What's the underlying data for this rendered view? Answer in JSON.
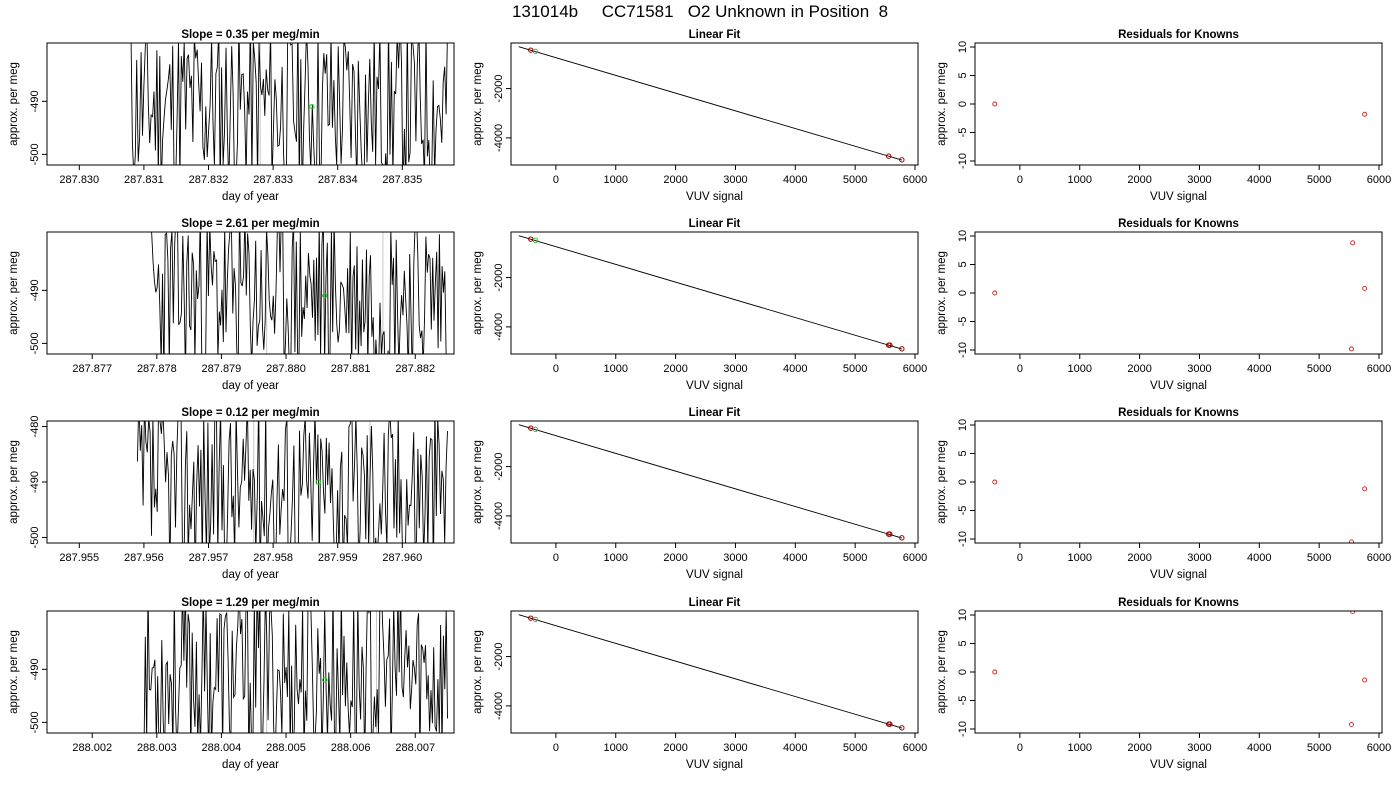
{
  "figure_title": "131014b     CC71581   O2 Unknown in Position  8",
  "chart_data": [
    {
      "type": "line",
      "title": "Slope =  0.35  per meg/min",
      "xlabel": "day of year",
      "ylabel": "approx. per meg",
      "xlim": [
        287.8295,
        287.8358
      ],
      "ylim": [
        -502,
        -479
      ],
      "xticks": [
        287.83,
        287.831,
        287.832,
        287.833,
        287.834,
        287.835
      ],
      "xtick_labels": [
        "287.830",
        "287.831",
        "287.832",
        "287.833",
        "287.834",
        "287.835"
      ],
      "yticks": [
        -490,
        -500
      ],
      "ytick_labels": [
        "-490",
        "-500"
      ],
      "x_start": 287.8308,
      "x_end": 287.8357,
      "seed": 11,
      "vlines": [
        287.8328
      ],
      "point": {
        "x": 287.8336,
        "y": -491
      }
    },
    {
      "type": "line",
      "title": "Linear Fit",
      "xlabel": "VUV signal",
      "ylabel": "approx. per meg",
      "xlim": [
        -750,
        6050
      ],
      "ylim": [
        -5100,
        -150
      ],
      "xticks": [
        0,
        1000,
        2000,
        3000,
        4000,
        5000,
        6000
      ],
      "xtick_labels": [
        "0",
        "1000",
        "2000",
        "3000",
        "4000",
        "5000",
        "6000"
      ],
      "yticks": [
        -2000,
        -4000
      ],
      "ytick_labels": [
        "-2000",
        "-4000"
      ],
      "line": [
        [
          -620,
          -300
        ],
        [
          5780,
          -4900
        ]
      ],
      "knowns": [
        [
          -420,
          -440
        ],
        [
          5560,
          -4740
        ],
        [
          5780,
          -4890
        ]
      ],
      "unknown": [
        -340,
        -490
      ]
    },
    {
      "type": "scatter",
      "title": "Residuals for Knowns",
      "xlabel": "VUV signal",
      "ylabel": "approx. per meg",
      "xlim": [
        -750,
        6050
      ],
      "ylim": [
        -10.7,
        10.7
      ],
      "xticks": [
        0,
        1000,
        2000,
        3000,
        4000,
        5000,
        6000
      ],
      "xtick_labels": [
        "0",
        "1000",
        "2000",
        "3000",
        "4000",
        "5000",
        "6000"
      ],
      "yticks": [
        10,
        5,
        0,
        -5,
        -10
      ],
      "ytick_labels": [
        "10",
        "5",
        "0",
        "-5",
        "-10"
      ],
      "points": [
        [
          -420,
          0.0
        ],
        [
          5760,
          -1.8
        ]
      ]
    },
    {
      "type": "line",
      "title": "Slope =  2.61  per meg/min",
      "xlabel": "day of year",
      "ylabel": "approx. per meg",
      "xlim": [
        287.8763,
        287.8826
      ],
      "ylim": [
        -502,
        -479
      ],
      "xticks": [
        287.877,
        287.878,
        287.879,
        287.88,
        287.881,
        287.882
      ],
      "xtick_labels": [
        "287.877",
        "287.878",
        "287.879",
        "287.880",
        "287.881",
        "287.882"
      ],
      "yticks": [
        -490,
        -500
      ],
      "ytick_labels": [
        "-490",
        "-500"
      ],
      "x_start": 287.8779,
      "x_end": 287.8825,
      "seed": 23,
      "vlines": [
        287.8797,
        287.8815
      ],
      "point": {
        "x": 287.8806,
        "y": -491
      }
    },
    {
      "type": "line",
      "title": "Linear Fit",
      "xlabel": "VUV signal",
      "ylabel": "approx. per meg",
      "xlim": [
        -750,
        6050
      ],
      "ylim": [
        -5100,
        -150
      ],
      "xticks": [
        0,
        1000,
        2000,
        3000,
        4000,
        5000,
        6000
      ],
      "xtick_labels": [
        "0",
        "1000",
        "2000",
        "3000",
        "4000",
        "5000",
        "6000"
      ],
      "yticks": [
        -2000,
        -4000
      ],
      "ytick_labels": [
        "-2000",
        "-4000"
      ],
      "line": [
        [
          -620,
          -300
        ],
        [
          5780,
          -4900
        ]
      ],
      "knowns": [
        [
          -420,
          -440
        ],
        [
          5560,
          -4740
        ],
        [
          5580,
          -4740
        ],
        [
          5780,
          -4890
        ]
      ],
      "unknown": [
        -340,
        -490
      ]
    },
    {
      "type": "scatter",
      "title": "Residuals for Knowns",
      "xlabel": "VUV signal",
      "ylabel": "approx. per meg",
      "xlim": [
        -750,
        6050
      ],
      "ylim": [
        -10.7,
        10.7
      ],
      "xticks": [
        0,
        1000,
        2000,
        3000,
        4000,
        5000,
        6000
      ],
      "xtick_labels": [
        "0",
        "1000",
        "2000",
        "3000",
        "4000",
        "5000",
        "6000"
      ],
      "yticks": [
        10,
        5,
        0,
        -5,
        -10
      ],
      "ytick_labels": [
        "10",
        "5",
        "0",
        "-5",
        "-10"
      ],
      "points": [
        [
          -420,
          0.0
        ],
        [
          5560,
          8.8
        ],
        [
          5760,
          0.8
        ],
        [
          5540,
          -9.8
        ]
      ]
    },
    {
      "type": "line",
      "title": "Slope =  0.12  per meg/min",
      "xlabel": "day of year",
      "ylabel": "approx. per meg",
      "xlim": [
        287.9545,
        287.9608
      ],
      "ylim": [
        -501,
        -479
      ],
      "xticks": [
        287.955,
        287.956,
        287.957,
        287.958,
        287.959,
        287.96
      ],
      "xtick_labels": [
        "287.955",
        "287.956",
        "287.957",
        "287.958",
        "287.959",
        "287.960"
      ],
      "yticks": [
        -480,
        -490,
        -500
      ],
      "ytick_labels": [
        "-480",
        "-490",
        "-500"
      ],
      "x_start": 287.9559,
      "x_end": 287.9607,
      "seed": 37,
      "vlines": [
        287.9577,
        287.9595
      ],
      "point": {
        "x": 287.9587,
        "y": -490
      }
    },
    {
      "type": "line",
      "title": "Linear Fit",
      "xlabel": "VUV signal",
      "ylabel": "approx. per meg",
      "xlim": [
        -750,
        6050
      ],
      "ylim": [
        -5100,
        -150
      ],
      "xticks": [
        0,
        1000,
        2000,
        3000,
        4000,
        5000,
        6000
      ],
      "xtick_labels": [
        "0",
        "1000",
        "2000",
        "3000",
        "4000",
        "5000",
        "6000"
      ],
      "yticks": [
        -2000,
        -4000
      ],
      "ytick_labels": [
        "-2000",
        "-4000"
      ],
      "line": [
        [
          -620,
          -300
        ],
        [
          5780,
          -4900
        ]
      ],
      "knowns": [
        [
          -420,
          -440
        ],
        [
          5560,
          -4740
        ],
        [
          5580,
          -4740
        ],
        [
          5780,
          -4890
        ]
      ],
      "unknown": [
        -340,
        -490
      ]
    },
    {
      "type": "scatter",
      "title": "Residuals for Knowns",
      "xlabel": "VUV signal",
      "ylabel": "approx. per meg",
      "xlim": [
        -750,
        6050
      ],
      "ylim": [
        -10.7,
        10.7
      ],
      "xticks": [
        0,
        1000,
        2000,
        3000,
        4000,
        5000,
        6000
      ],
      "xtick_labels": [
        "0",
        "1000",
        "2000",
        "3000",
        "4000",
        "5000",
        "6000"
      ],
      "yticks": [
        10,
        5,
        0,
        -5,
        -10
      ],
      "ytick_labels": [
        "10",
        "5",
        "0",
        "-5",
        "-10"
      ],
      "points": [
        [
          -420,
          0.0
        ],
        [
          5760,
          -1.2
        ],
        [
          5540,
          -10.5
        ]
      ]
    },
    {
      "type": "line",
      "title": "Slope =  1.29  per meg/min",
      "xlabel": "day of year",
      "ylabel": "approx. per meg",
      "xlim": [
        288.0013,
        288.0076
      ],
      "ylim": [
        -502,
        -479
      ],
      "xticks": [
        288.002,
        288.003,
        288.004,
        288.005,
        288.006,
        288.007
      ],
      "xtick_labels": [
        "288.002",
        "288.003",
        "288.004",
        "288.005",
        "288.006",
        "288.007"
      ],
      "yticks": [
        -490,
        -500
      ],
      "ytick_labels": [
        "-490",
        "-500"
      ],
      "x_start": 288.0028,
      "x_end": 288.0075,
      "seed": 53,
      "vlines": [
        288.0047,
        288.0064
      ],
      "point": {
        "x": 288.0056,
        "y": -492
      }
    },
    {
      "type": "line",
      "title": "Linear Fit",
      "xlabel": "VUV signal",
      "ylabel": "approx. per meg",
      "xlim": [
        -750,
        6050
      ],
      "ylim": [
        -5100,
        -150
      ],
      "xticks": [
        0,
        1000,
        2000,
        3000,
        4000,
        5000,
        6000
      ],
      "xtick_labels": [
        "0",
        "1000",
        "2000",
        "3000",
        "4000",
        "5000",
        "6000"
      ],
      "yticks": [
        -2000,
        -4000
      ],
      "ytick_labels": [
        "-2000",
        "-4000"
      ],
      "line": [
        [
          -620,
          -300
        ],
        [
          5780,
          -4900
        ]
      ],
      "knowns": [
        [
          -420,
          -440
        ],
        [
          5560,
          -4740
        ],
        [
          5580,
          -4740
        ],
        [
          5780,
          -4890
        ]
      ],
      "unknown": [
        -340,
        -490
      ]
    },
    {
      "type": "scatter",
      "title": "Residuals for Knowns",
      "xlabel": "VUV signal",
      "ylabel": "approx. per meg",
      "xlim": [
        -750,
        6050
      ],
      "ylim": [
        -10.7,
        10.7
      ],
      "xticks": [
        0,
        1000,
        2000,
        3000,
        4000,
        5000,
        6000
      ],
      "xtick_labels": [
        "0",
        "1000",
        "2000",
        "3000",
        "4000",
        "5000",
        "6000"
      ],
      "yticks": [
        10,
        5,
        0,
        -5,
        -10
      ],
      "ytick_labels": [
        "10",
        "5",
        "0",
        "-5",
        "-10"
      ],
      "points": [
        [
          -420,
          0.0
        ],
        [
          5560,
          10.6
        ],
        [
          5760,
          -1.4
        ],
        [
          5540,
          -9.2
        ]
      ]
    }
  ],
  "colors": {
    "trace": "#000000",
    "green_point": "#22cc22",
    "residual_point": "#cc2222",
    "vline": "#c8c8c8",
    "fit_point": "#990000"
  }
}
